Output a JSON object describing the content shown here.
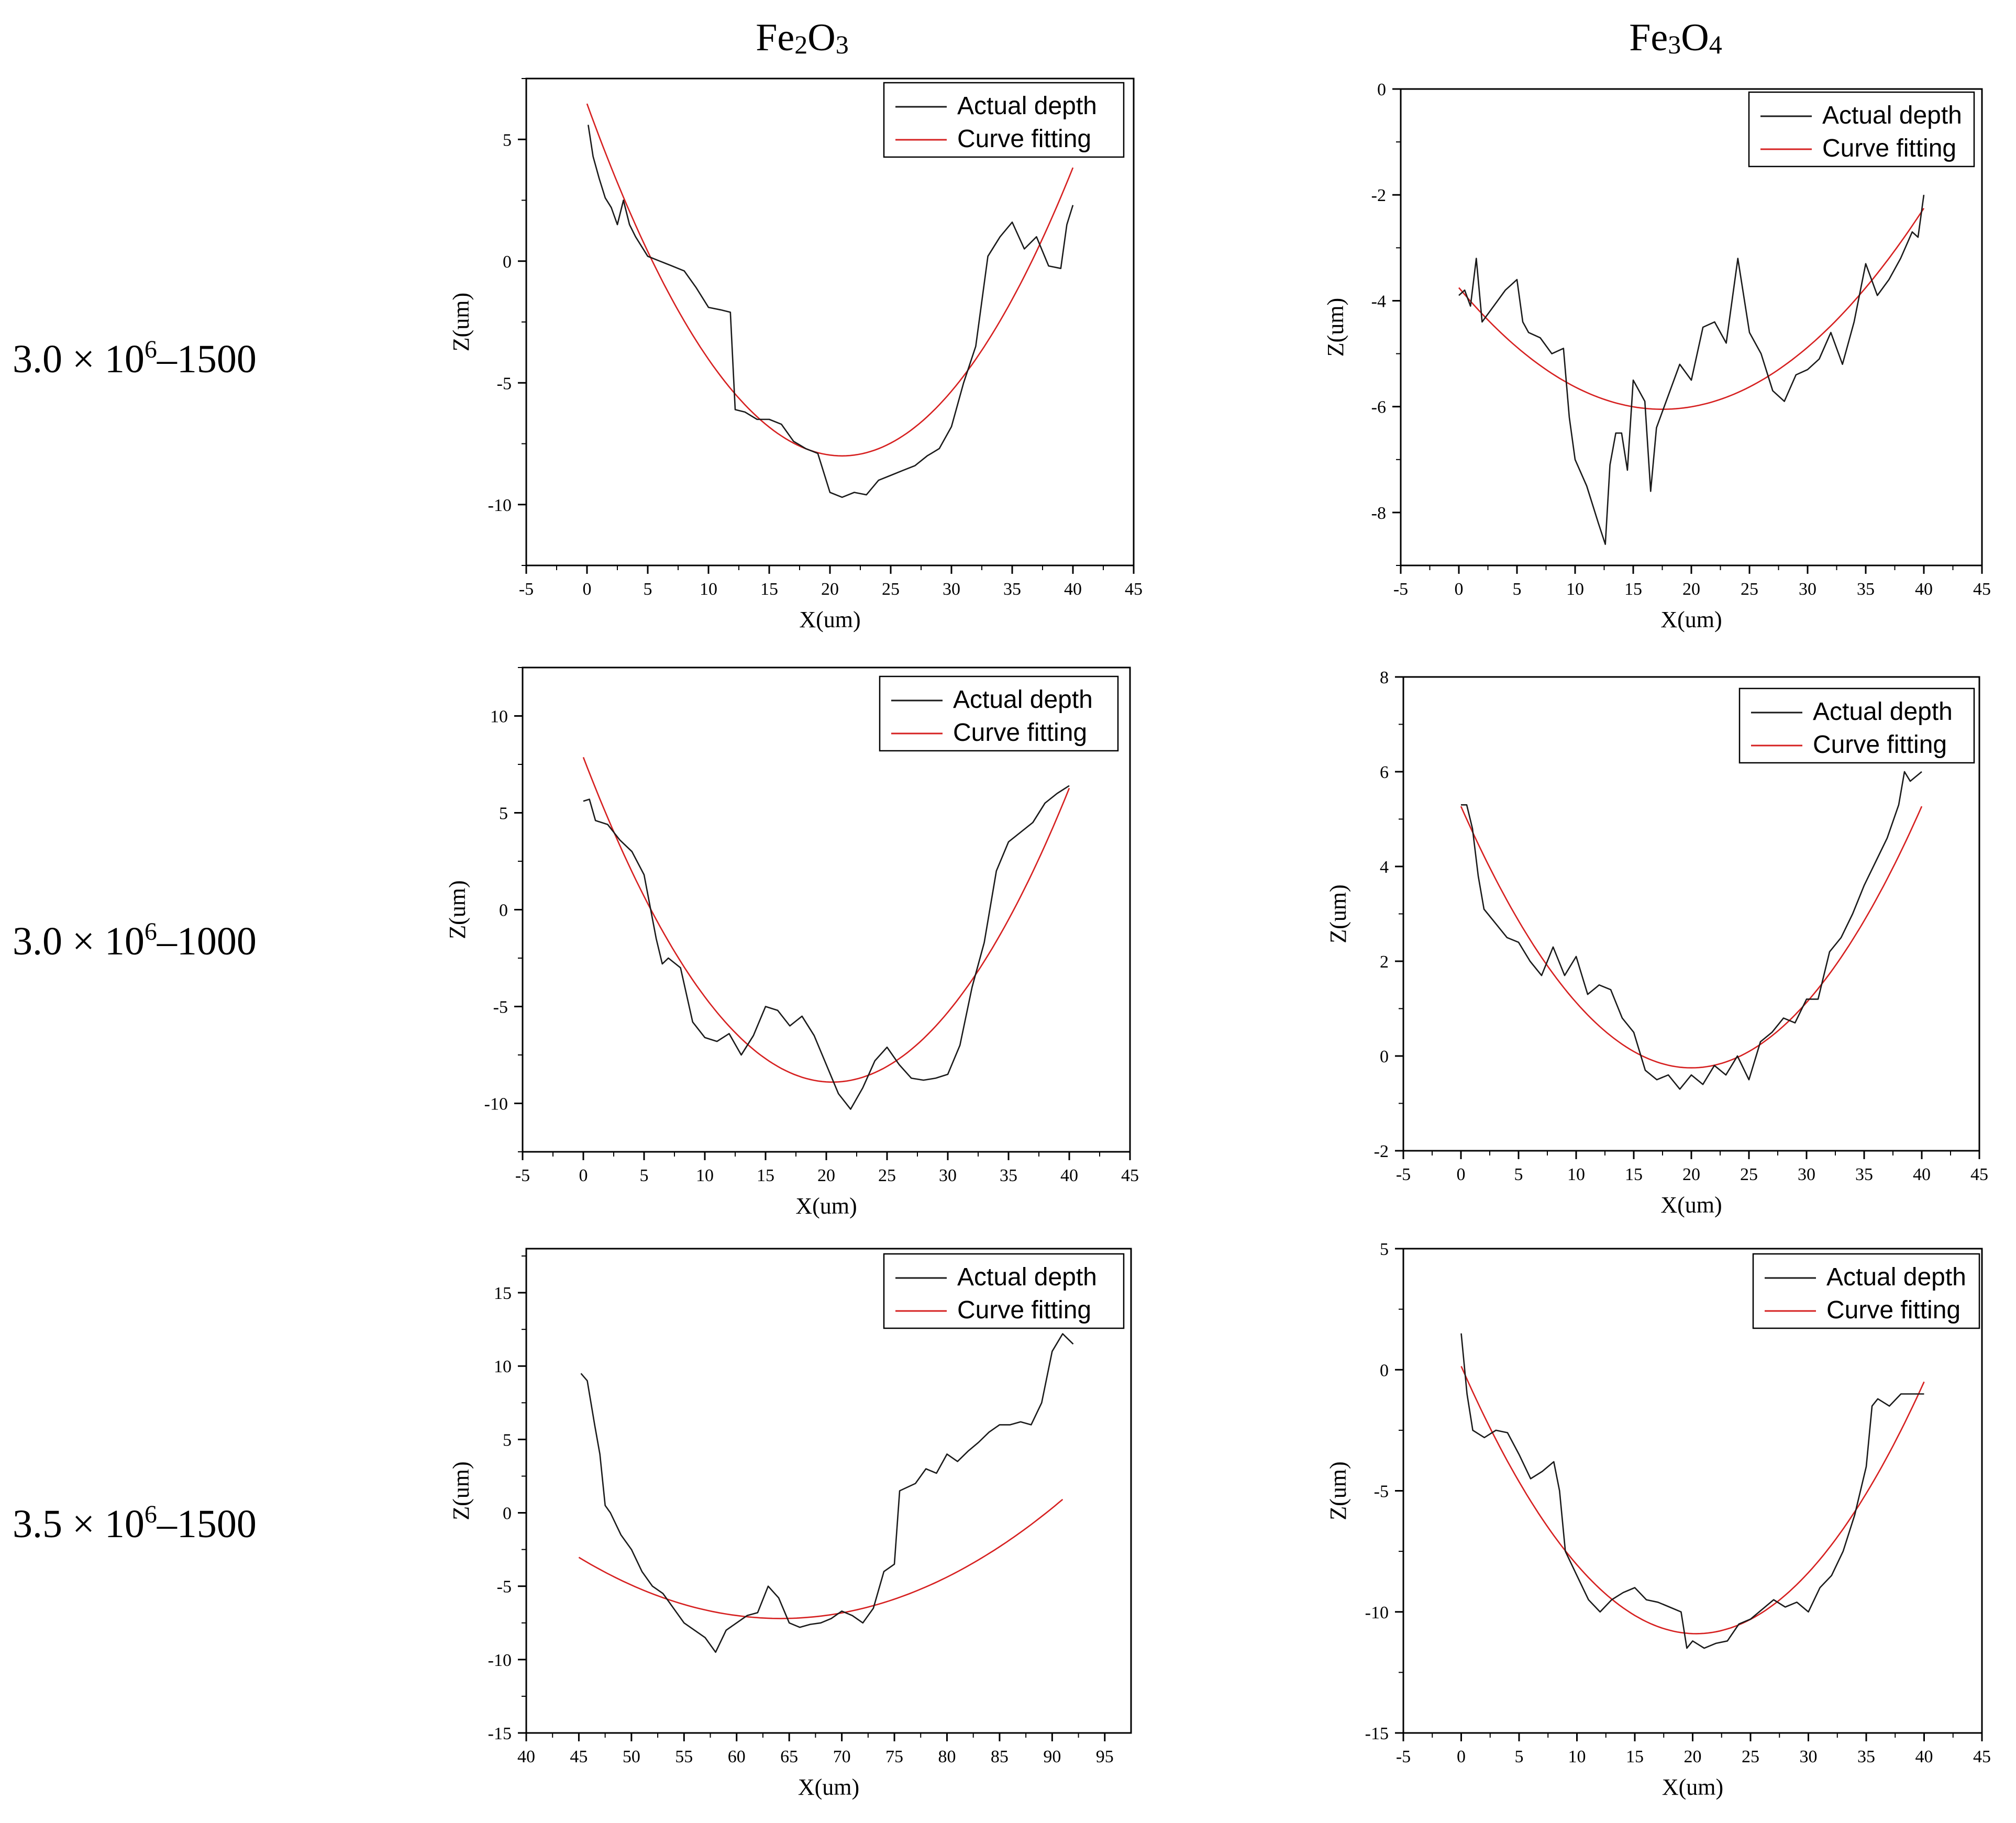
{
  "columns": [
    {
      "label_main": "Fe",
      "label_sub1": "2",
      "label_mid": "O",
      "label_sub2": "3"
    },
    {
      "label_main": "Fe",
      "label_sub1": "3",
      "label_mid": "O",
      "label_sub2": "4"
    }
  ],
  "rows": [
    {
      "pre": "3.0 × 10",
      "sup": "6",
      "post": "–1500"
    },
    {
      "pre": "3.0 × 10",
      "sup": "6",
      "post": "–1000"
    },
    {
      "pre": "3.5 × 10",
      "sup": "6",
      "post": "–1500"
    }
  ],
  "colors": {
    "actual": "#1a1a1a",
    "fit": "#d62020",
    "axis": "#000000"
  },
  "chart_data": [
    {
      "type": "line",
      "title": "Fe2O3 3.0 × 10^6–1500",
      "xlabel": "X(um)",
      "ylabel": "Z(um)",
      "xlim": [
        -5,
        45
      ],
      "ylim": [
        -12.5,
        7.5
      ],
      "xticks": [
        -5,
        0,
        5,
        10,
        15,
        20,
        25,
        30,
        35,
        40,
        45
      ],
      "yticks": [
        5,
        0,
        -5,
        -10
      ],
      "legend": [
        "Actual depth",
        "Curve fitting"
      ],
      "fit": {
        "a": 0.0328,
        "x0": 21,
        "y0": -8,
        "xmin": 0,
        "xmax": 40
      },
      "actual": [
        [
          0.1,
          5.6
        ],
        [
          0.5,
          4.3
        ],
        [
          1,
          3.4
        ],
        [
          1.5,
          2.6
        ],
        [
          2,
          2.2
        ],
        [
          2.5,
          1.5
        ],
        [
          3,
          2.5
        ],
        [
          3.5,
          1.5
        ],
        [
          4,
          1
        ],
        [
          5,
          0.2
        ],
        [
          6,
          0
        ],
        [
          7,
          -0.2
        ],
        [
          8,
          -0.4
        ],
        [
          9,
          -1.1
        ],
        [
          10,
          -1.9
        ],
        [
          11,
          -2
        ],
        [
          11.8,
          -2.1
        ],
        [
          12.2,
          -6.1
        ],
        [
          13,
          -6.2
        ],
        [
          14,
          -6.5
        ],
        [
          15,
          -6.5
        ],
        [
          16,
          -6.7
        ],
        [
          17,
          -7.4
        ],
        [
          18,
          -7.7
        ],
        [
          19,
          -7.9
        ],
        [
          20,
          -9.5
        ],
        [
          21,
          -9.7
        ],
        [
          22,
          -9.5
        ],
        [
          23,
          -9.6
        ],
        [
          24,
          -9
        ],
        [
          25,
          -8.8
        ],
        [
          26,
          -8.6
        ],
        [
          27,
          -8.4
        ],
        [
          28,
          -8
        ],
        [
          29,
          -7.7
        ],
        [
          30,
          -6.8
        ],
        [
          31,
          -5
        ],
        [
          32,
          -3.5
        ],
        [
          33,
          0.2
        ],
        [
          34,
          1
        ],
        [
          35,
          1.6
        ],
        [
          36,
          0.5
        ],
        [
          37,
          1
        ],
        [
          38,
          -0.2
        ],
        [
          39,
          -0.3
        ],
        [
          39.5,
          1.5
        ],
        [
          40,
          2.3
        ]
      ]
    },
    {
      "type": "line",
      "title": "Fe3O4 3.0 × 10^6–1500",
      "xlabel": "X(um)",
      "ylabel": "Z(um)",
      "xlim": [
        -5,
        45
      ],
      "ylim": [
        -9,
        0
      ],
      "xticks": [
        -5,
        0,
        5,
        10,
        15,
        20,
        25,
        30,
        35,
        40,
        45
      ],
      "yticks": [
        0,
        -2,
        -4,
        -6,
        -8
      ],
      "legend": [
        "Actual depth",
        "Curve fitting"
      ],
      "fit": {
        "a": 0.0075,
        "x0": 17.5,
        "y0": -6.05,
        "xmin": 0,
        "xmax": 40
      },
      "actual": [
        [
          0,
          -3.9
        ],
        [
          0.5,
          -3.8
        ],
        [
          1,
          -4.1
        ],
        [
          1.5,
          -3.2
        ],
        [
          2,
          -4.4
        ],
        [
          3,
          -4.1
        ],
        [
          4,
          -3.8
        ],
        [
          5,
          -3.6
        ],
        [
          5.5,
          -4.4
        ],
        [
          6,
          -4.6
        ],
        [
          7,
          -4.7
        ],
        [
          8,
          -5
        ],
        [
          9,
          -4.9
        ],
        [
          9.5,
          -6.2
        ],
        [
          10,
          -7
        ],
        [
          11,
          -7.5
        ],
        [
          12,
          -8.2
        ],
        [
          12.6,
          -8.6
        ],
        [
          13,
          -7.1
        ],
        [
          13.5,
          -6.5
        ],
        [
          14,
          -6.5
        ],
        [
          14.5,
          -7.2
        ],
        [
          15,
          -5.5
        ],
        [
          16,
          -5.9
        ],
        [
          16.5,
          -7.6
        ],
        [
          17,
          -6.4
        ],
        [
          18,
          -5.8
        ],
        [
          19,
          -5.2
        ],
        [
          20,
          -5.5
        ],
        [
          21,
          -4.5
        ],
        [
          22,
          -4.4
        ],
        [
          23,
          -4.8
        ],
        [
          24,
          -3.2
        ],
        [
          25,
          -4.6
        ],
        [
          26,
          -5
        ],
        [
          27,
          -5.7
        ],
        [
          28,
          -5.9
        ],
        [
          29,
          -5.4
        ],
        [
          30,
          -5.3
        ],
        [
          31,
          -5.1
        ],
        [
          32,
          -4.6
        ],
        [
          33,
          -5.2
        ],
        [
          34,
          -4.4
        ],
        [
          35,
          -3.3
        ],
        [
          36,
          -3.9
        ],
        [
          37,
          -3.6
        ],
        [
          38,
          -3.2
        ],
        [
          39,
          -2.7
        ],
        [
          39.5,
          -2.8
        ],
        [
          40,
          -2
        ]
      ]
    },
    {
      "type": "line",
      "title": "Fe2O3 3.0 × 10^6–1000",
      "xlabel": "X(um)",
      "ylabel": "Z(um)",
      "xlim": [
        -5,
        45
      ],
      "ylim": [
        -12.5,
        12.5
      ],
      "xticks": [
        -5,
        0,
        5,
        10,
        15,
        20,
        25,
        30,
        35,
        40,
        45
      ],
      "yticks": [
        10,
        5,
        0,
        -5,
        -10
      ],
      "legend": [
        "Actual depth",
        "Curve fitting"
      ],
      "fit": {
        "a": 0.0399,
        "x0": 20.5,
        "y0": -8.9,
        "xmin": 0,
        "xmax": 40
      },
      "actual": [
        [
          0,
          5.6
        ],
        [
          0.5,
          5.7
        ],
        [
          1,
          4.6
        ],
        [
          2,
          4.4
        ],
        [
          3,
          3.6
        ],
        [
          4,
          3
        ],
        [
          5,
          1.8
        ],
        [
          6,
          -1.5
        ],
        [
          6.5,
          -2.8
        ],
        [
          7,
          -2.5
        ],
        [
          8,
          -3
        ],
        [
          9,
          -5.8
        ],
        [
          10,
          -6.6
        ],
        [
          11,
          -6.8
        ],
        [
          12,
          -6.4
        ],
        [
          13,
          -7.5
        ],
        [
          14,
          -6.5
        ],
        [
          15,
          -5
        ],
        [
          16,
          -5.2
        ],
        [
          17,
          -6
        ],
        [
          18,
          -5.5
        ],
        [
          19,
          -6.5
        ],
        [
          20,
          -8
        ],
        [
          21,
          -9.5
        ],
        [
          22,
          -10.3
        ],
        [
          23,
          -9.2
        ],
        [
          24,
          -7.8
        ],
        [
          25,
          -7.1
        ],
        [
          26,
          -8
        ],
        [
          27,
          -8.7
        ],
        [
          28,
          -8.8
        ],
        [
          29,
          -8.7
        ],
        [
          30,
          -8.5
        ],
        [
          31,
          -7
        ],
        [
          32,
          -4
        ],
        [
          33,
          -1.7
        ],
        [
          34,
          2
        ],
        [
          35,
          3.5
        ],
        [
          36,
          4
        ],
        [
          37,
          4.5
        ],
        [
          38,
          5.5
        ],
        [
          39,
          6
        ],
        [
          40,
          6.4
        ]
      ]
    },
    {
      "type": "line",
      "title": "Fe3O4 3.0 × 10^6–1000",
      "xlabel": "X(um)",
      "ylabel": "Z(um)",
      "xlim": [
        -5,
        45
      ],
      "ylim": [
        -2,
        8
      ],
      "xticks": [
        -5,
        0,
        5,
        10,
        15,
        20,
        25,
        30,
        35,
        40,
        45
      ],
      "yticks": [
        8,
        6,
        4,
        2,
        0,
        -2
      ],
      "legend": [
        "Actual depth",
        "Curve fitting"
      ],
      "fit": {
        "a": 0.0138,
        "x0": 20,
        "y0": -0.25,
        "xmin": 0,
        "xmax": 40
      },
      "actual": [
        [
          0,
          5.3
        ],
        [
          0.5,
          5.3
        ],
        [
          1,
          4.8
        ],
        [
          1.5,
          3.8
        ],
        [
          2,
          3.1
        ],
        [
          3,
          2.8
        ],
        [
          4,
          2.5
        ],
        [
          5,
          2.4
        ],
        [
          6,
          2
        ],
        [
          7,
          1.7
        ],
        [
          8,
          2.3
        ],
        [
          9,
          1.7
        ],
        [
          10,
          2.1
        ],
        [
          11,
          1.3
        ],
        [
          12,
          1.5
        ],
        [
          13,
          1.4
        ],
        [
          14,
          0.8
        ],
        [
          15,
          0.5
        ],
        [
          16,
          -0.3
        ],
        [
          17,
          -0.5
        ],
        [
          18,
          -0.4
        ],
        [
          19,
          -0.7
        ],
        [
          20,
          -0.4
        ],
        [
          21,
          -0.6
        ],
        [
          22,
          -0.2
        ],
        [
          23,
          -0.4
        ],
        [
          24,
          0
        ],
        [
          25,
          -0.5
        ],
        [
          26,
          0.3
        ],
        [
          27,
          0.5
        ],
        [
          28,
          0.8
        ],
        [
          29,
          0.7
        ],
        [
          30,
          1.2
        ],
        [
          31,
          1.2
        ],
        [
          32,
          2.2
        ],
        [
          33,
          2.5
        ],
        [
          34,
          3
        ],
        [
          35,
          3.6
        ],
        [
          36,
          4.1
        ],
        [
          37,
          4.6
        ],
        [
          38,
          5.3
        ],
        [
          38.5,
          6
        ],
        [
          39,
          5.8
        ],
        [
          40,
          6
        ]
      ]
    },
    {
      "type": "line",
      "title": "Fe2O3 3.5 × 10^6–1500",
      "xlabel": "X(um)",
      "ylabel": "Z(um)",
      "xlim": [
        40,
        97.5
      ],
      "ylim": [
        -15,
        18
      ],
      "xticks": [
        40,
        45,
        50,
        55,
        60,
        65,
        70,
        75,
        80,
        85,
        90,
        95
      ],
      "yticks": [
        15,
        10,
        5,
        0,
        -5,
        -10,
        -15
      ],
      "legend": [
        "Actual depth",
        "Curve fitting"
      ],
      "fit": {
        "a": 0.0113,
        "x0": 64.2,
        "y0": -7.2,
        "xmin": 45,
        "xmax": 91
      },
      "actual": [
        [
          45.2,
          9.5
        ],
        [
          45.8,
          9
        ],
        [
          46.5,
          6
        ],
        [
          47,
          4
        ],
        [
          47.5,
          0.5
        ],
        [
          48,
          0
        ],
        [
          49,
          -1.5
        ],
        [
          50,
          -2.5
        ],
        [
          51,
          -4
        ],
        [
          52,
          -5
        ],
        [
          53,
          -5.5
        ],
        [
          54,
          -6.5
        ],
        [
          55,
          -7.5
        ],
        [
          56,
          -8
        ],
        [
          57,
          -8.5
        ],
        [
          58,
          -9.5
        ],
        [
          59,
          -8
        ],
        [
          60,
          -7.5
        ],
        [
          61,
          -7
        ],
        [
          62,
          -6.8
        ],
        [
          63,
          -5
        ],
        [
          64,
          -5.8
        ],
        [
          65,
          -7.5
        ],
        [
          66,
          -7.8
        ],
        [
          67,
          -7.6
        ],
        [
          68,
          -7.5
        ],
        [
          69,
          -7.2
        ],
        [
          70,
          -6.7
        ],
        [
          71,
          -7
        ],
        [
          72,
          -7.5
        ],
        [
          73,
          -6.5
        ],
        [
          74,
          -4
        ],
        [
          75,
          -3.5
        ],
        [
          75.5,
          1.5
        ],
        [
          77,
          2
        ],
        [
          78,
          3
        ],
        [
          79,
          2.7
        ],
        [
          80,
          4
        ],
        [
          81,
          3.5
        ],
        [
          82,
          4.2
        ],
        [
          83,
          4.8
        ],
        [
          84,
          5.5
        ],
        [
          85,
          6
        ],
        [
          86,
          6
        ],
        [
          87,
          6.2
        ],
        [
          88,
          6
        ],
        [
          89,
          7.5
        ],
        [
          90,
          11
        ],
        [
          91,
          12.2
        ],
        [
          92,
          11.5
        ]
      ]
    },
    {
      "type": "line",
      "title": "Fe3O4 3.5 × 10^6–1500",
      "xlabel": "X(um)",
      "ylabel": "Z(um)",
      "xlim": [
        -5,
        45
      ],
      "ylim": [
        -15,
        5
      ],
      "xticks": [
        -5,
        0,
        5,
        10,
        15,
        20,
        25,
        30,
        35,
        40,
        45
      ],
      "yticks": [
        5,
        0,
        -5,
        -10,
        -15
      ],
      "legend": [
        "Actual depth",
        "Curve fitting"
      ],
      "fit": {
        "a": 0.0268,
        "x0": 20.3,
        "y0": -10.9,
        "xmin": 0,
        "xmax": 40
      },
      "actual": [
        [
          0,
          1.5
        ],
        [
          0.5,
          -1
        ],
        [
          1,
          -2.5
        ],
        [
          2,
          -2.8
        ],
        [
          3,
          -2.5
        ],
        [
          4,
          -2.6
        ],
        [
          5,
          -3.5
        ],
        [
          6,
          -4.5
        ],
        [
          7,
          -4.2
        ],
        [
          8,
          -3.8
        ],
        [
          8.5,
          -5
        ],
        [
          9,
          -7.5
        ],
        [
          10,
          -8.5
        ],
        [
          11,
          -9.5
        ],
        [
          12,
          -10
        ],
        [
          13,
          -9.5
        ],
        [
          14,
          -9.2
        ],
        [
          15,
          -9
        ],
        [
          16,
          -9.5
        ],
        [
          17,
          -9.6
        ],
        [
          18,
          -9.8
        ],
        [
          19,
          -10
        ],
        [
          19.5,
          -11.5
        ],
        [
          20,
          -11.2
        ],
        [
          21,
          -11.5
        ],
        [
          22,
          -11.3
        ],
        [
          23,
          -11.2
        ],
        [
          24,
          -10.5
        ],
        [
          25,
          -10.3
        ],
        [
          26,
          -9.9
        ],
        [
          27,
          -9.5
        ],
        [
          28,
          -9.8
        ],
        [
          29,
          -9.6
        ],
        [
          30,
          -10
        ],
        [
          31,
          -9
        ],
        [
          32,
          -8.5
        ],
        [
          33,
          -7.5
        ],
        [
          34,
          -6
        ],
        [
          35,
          -4
        ],
        [
          35.5,
          -1.5
        ],
        [
          36,
          -1.2
        ],
        [
          37,
          -1.5
        ],
        [
          38,
          -1
        ],
        [
          39,
          -1
        ],
        [
          40,
          -1
        ]
      ]
    }
  ]
}
